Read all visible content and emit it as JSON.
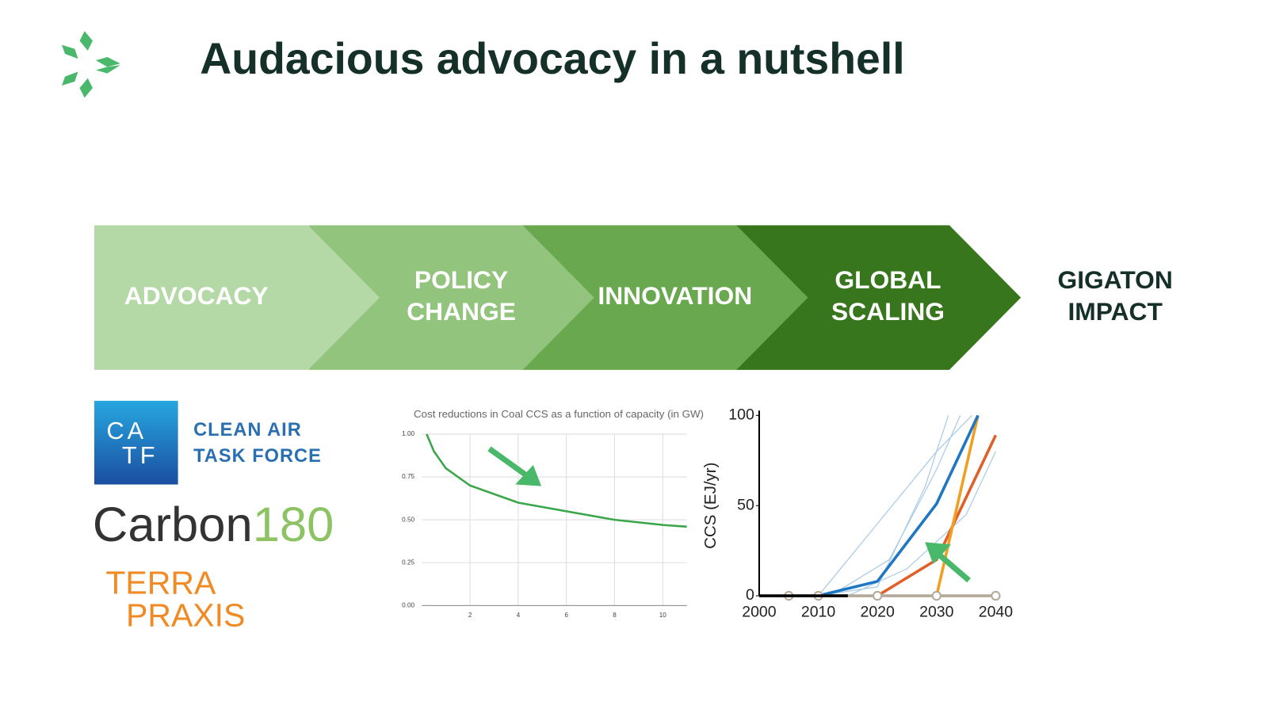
{
  "header": {
    "title": "Audacious advocacy in a nutshell"
  },
  "stages": [
    {
      "lines": [
        "ADVOCACY"
      ],
      "color": "#b5d8a7"
    },
    {
      "lines": [
        "POLICY",
        "CHANGE"
      ],
      "color": "#93c47d"
    },
    {
      "lines": [
        "INNOVATION"
      ],
      "color": "#6aa84f"
    },
    {
      "lines": [
        "GLOBAL",
        "SCALING"
      ],
      "color": "#38761d"
    }
  ],
  "outcome": {
    "lines": [
      "GIGATON",
      "IMPACT"
    ]
  },
  "logos": {
    "catf": {
      "mark": [
        "CA",
        "TF"
      ],
      "name": [
        "CLEAN AIR",
        "TASK FORCE"
      ]
    },
    "carbon180": {
      "parts": [
        "Carbon",
        "180"
      ]
    },
    "terrapraxis": {
      "lines": [
        "TERRA",
        "PRAXIS"
      ]
    }
  },
  "charts": [
    {
      "type": "line",
      "title": "Cost reductions in Coal CCS as a function of capacity (in GW)",
      "xlim": [
        0,
        11
      ],
      "ylim": [
        0,
        1
      ],
      "xticks": [
        2,
        4,
        6,
        8,
        10
      ],
      "yticks": [
        {
          "value": 0,
          "label": "0.00"
        },
        {
          "value": 0.25,
          "label": "0.25"
        },
        {
          "value": 0.5,
          "label": "0.50"
        },
        {
          "value": 0.75,
          "label": "0.75"
        },
        {
          "value": 1,
          "label": "1.00"
        }
      ],
      "grid": true,
      "series": [
        {
          "color": "#3aa64a",
          "x": [
            0.2,
            0.5,
            1,
            2,
            4,
            6,
            8,
            10,
            11
          ],
          "values": [
            1,
            0.9,
            0.8,
            0.7,
            0.6,
            0.55,
            0.5,
            0.47,
            0.46
          ]
        }
      ]
    },
    {
      "type": "line",
      "y_label": "CCS (EJ/yr)",
      "xlim": [
        2000,
        2040
      ],
      "ylim": [
        0,
        100
      ],
      "xticks": [
        2000,
        2010,
        2020,
        2030,
        2040
      ],
      "yticks": [
        0,
        50,
        100
      ],
      "grid": false,
      "series": [
        {
          "color": "#a8cbe8",
          "x": [
            2010,
            2020,
            2030,
            2036
          ],
          "values": [
            0,
            40,
            80,
            100
          ]
        },
        {
          "color": "#a8cbe8",
          "x": [
            2012,
            2022,
            2030,
            2034
          ],
          "values": [
            0,
            20,
            70,
            100
          ]
        },
        {
          "color": "#a8cbe8",
          "x": [
            2015,
            2025,
            2035,
            2040
          ],
          "values": [
            0,
            15,
            45,
            80
          ]
        },
        {
          "color": "#a8cbe8",
          "x": [
            2010,
            2020,
            2028,
            2032
          ],
          "values": [
            0,
            5,
            60,
            100
          ]
        },
        {
          "color": "#e0602a",
          "x": [
            2020,
            2030,
            2040
          ],
          "values": [
            0,
            20,
            89
          ]
        },
        {
          "color": "#f0a020",
          "x": [
            2030,
            2037
          ],
          "values": [
            0,
            100
          ]
        },
        {
          "color": "#1f77c4",
          "x": [
            2010,
            2020,
            2030,
            2037
          ],
          "values": [
            0,
            8,
            51,
            100
          ]
        },
        {
          "color": "#b4a898",
          "x": [
            2005,
            2010,
            2020,
            2030,
            2040
          ],
          "values": [
            0,
            0,
            0,
            0,
            0
          ],
          "markers": true
        },
        {
          "color": "#000000",
          "x": [
            2000,
            2015
          ],
          "values": [
            0,
            0
          ]
        }
      ]
    }
  ]
}
